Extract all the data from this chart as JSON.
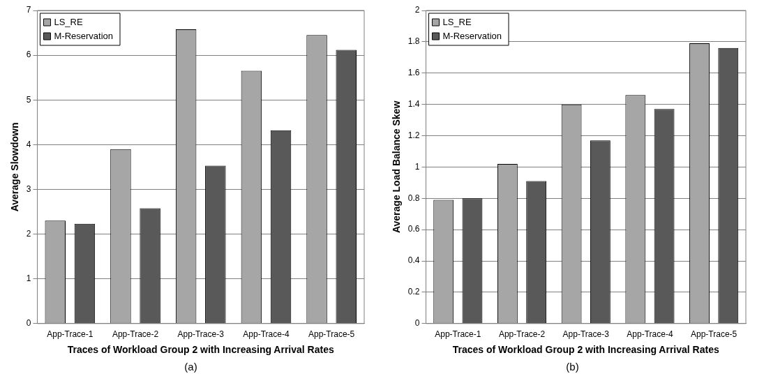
{
  "chart_data": [
    {
      "type": "bar",
      "xlabel": "Traces of Workload Group 2 with Increasing Arrival Rates",
      "ylabel": "Average Slowdown",
      "categories": [
        "App-Trace-1",
        "App-Trace-2",
        "App-Trace-3",
        "App-Trace-4",
        "App-Trace-5"
      ],
      "series": [
        {
          "name": "LS_RE",
          "color": "#a6a6a6",
          "values": [
            2.3,
            3.9,
            6.58,
            5.65,
            6.45
          ]
        },
        {
          "name": "M-Reservation",
          "color": "#595959",
          "values": [
            2.23,
            2.58,
            3.53,
            4.32,
            6.12
          ]
        }
      ],
      "ylim": [
        0,
        7
      ],
      "yticks": [
        0,
        1,
        2,
        3,
        4,
        5,
        6,
        7
      ],
      "grid": "y",
      "legend": "top left",
      "annotations": [
        "(a)"
      ]
    },
    {
      "type": "bar",
      "xlabel": "Traces of Workload Group 2 with Increasing Arrival Rates",
      "ylabel": "Average Load Balance Skew",
      "categories": [
        "App-Trace-1",
        "App-Trace-2",
        "App-Trace-3",
        "App-Trace-4",
        "App-Trace-5"
      ],
      "series": [
        {
          "name": "LS_RE",
          "color": "#a6a6a6",
          "values": [
            0.79,
            1.02,
            1.4,
            1.46,
            1.79
          ]
        },
        {
          "name": "M-Reservation",
          "color": "#595959",
          "values": [
            0.8,
            0.91,
            1.17,
            1.37,
            1.76
          ]
        }
      ],
      "ylim": [
        0,
        2
      ],
      "yticks": [
        0,
        0.2,
        0.4,
        0.6,
        0.8,
        1,
        1.2,
        1.4,
        1.6,
        1.8,
        2
      ],
      "grid": "y",
      "legend": "top left",
      "annotations": [
        "(b)"
      ]
    }
  ]
}
